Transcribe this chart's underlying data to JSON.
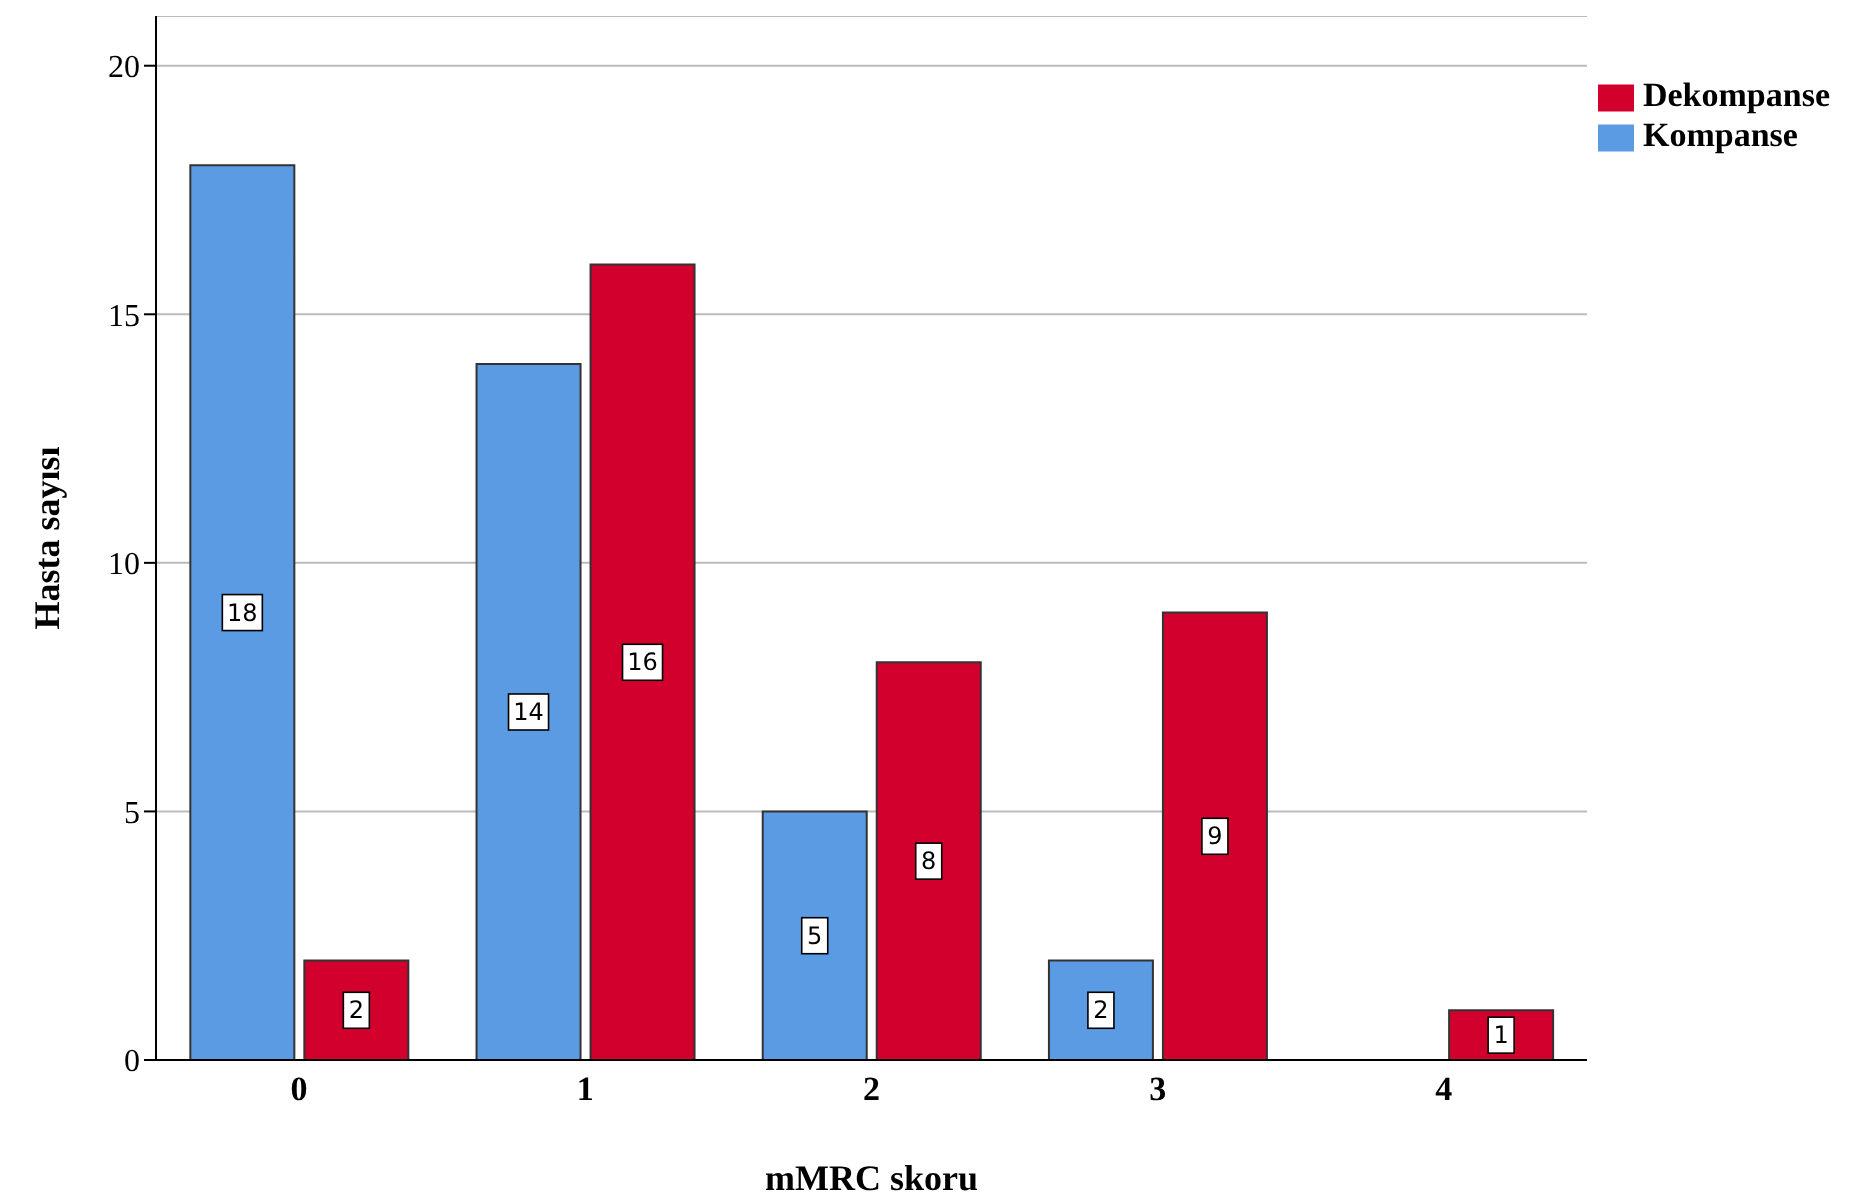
{
  "chart_data": {
    "type": "bar",
    "xlabel": "mMRC skoru",
    "ylabel": "Hasta sayısı",
    "categories": [
      "0",
      "1",
      "2",
      "3",
      "4"
    ],
    "series": [
      {
        "name": "Kompanse",
        "color": "#5a9be3",
        "values": [
          18,
          14,
          5,
          2,
          0
        ],
        "value_labels": [
          "18",
          "14",
          "5",
          "2",
          null
        ]
      },
      {
        "name": "Dekompanse",
        "color": "#d2002d",
        "values": [
          2,
          16,
          8,
          9,
          1
        ],
        "value_labels": [
          "2",
          "16",
          "8",
          "9",
          "1"
        ]
      }
    ],
    "ylim": [
      0,
      21
    ],
    "yticks": [
      0,
      5,
      10,
      15,
      20
    ],
    "grid": "y",
    "legend": "top right"
  }
}
